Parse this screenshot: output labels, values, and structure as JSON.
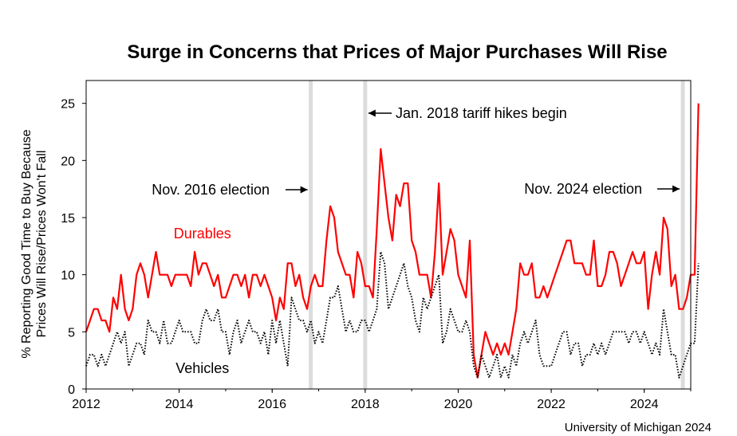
{
  "chart_data": {
    "type": "line",
    "title": "Surge in Concerns that Prices of Major Purchases Will Rise",
    "ylabel_line1": "% Reporting Good Time to Buy Because",
    "ylabel_line2": "Prices Will Rise/Prices Won't Fall",
    "xlabel": "",
    "source": "University of Michigan 2024",
    "xlim": [
      2012,
      2025.0
    ],
    "ylim": [
      0,
      27
    ],
    "xticks": [
      "2012",
      "2014",
      "2016",
      "2018",
      "2020",
      "2022",
      "2024"
    ],
    "yticks": [
      "0",
      "5",
      "10",
      "15",
      "20",
      "25"
    ],
    "events": [
      {
        "x": 2016.83,
        "label": "Nov. 2016 election"
      },
      {
        "x": 2018.0,
        "label": "Jan. 2018 tariff hikes begin"
      },
      {
        "x": 2024.83,
        "label": "Nov. 2024 election"
      }
    ],
    "series": [
      {
        "name": "Durables",
        "color": "#ff0000",
        "style": "solid",
        "start": 2012.0,
        "step_months": 1,
        "values": [
          5,
          6,
          7,
          7,
          6,
          6,
          5,
          8,
          7,
          10,
          7,
          6,
          7,
          10,
          11,
          10,
          8,
          10,
          12,
          10,
          10,
          10,
          9,
          10,
          10,
          10,
          10,
          9,
          12,
          10,
          11,
          11,
          10,
          9,
          10,
          8,
          8,
          9,
          10,
          10,
          9,
          10,
          8,
          10,
          10,
          9,
          10,
          9,
          8,
          6,
          8,
          7,
          11,
          11,
          9,
          10,
          8,
          7,
          9,
          10,
          9,
          9,
          13,
          16,
          15,
          12,
          11,
          10,
          10,
          8,
          12,
          11,
          9,
          9,
          8,
          14,
          21,
          18,
          15,
          13,
          17,
          16,
          18,
          18,
          13,
          12,
          10,
          10,
          10,
          8,
          12,
          18,
          10,
          12,
          14,
          13,
          10,
          9,
          8,
          13,
          3,
          1,
          3,
          5,
          4,
          3,
          4,
          3,
          4,
          3,
          5,
          7,
          11,
          10,
          10,
          11,
          8,
          8,
          9,
          8,
          9,
          10,
          11,
          12,
          13,
          13,
          11,
          11,
          11,
          10,
          10,
          13,
          9,
          9,
          10,
          12,
          12,
          11,
          9,
          10,
          11,
          12,
          11,
          11,
          12,
          7,
          10,
          12,
          10,
          15,
          14,
          9,
          10,
          7,
          7,
          8,
          10,
          10,
          25
        ],
        "label_x": 2014.5,
        "label_y": 13.2
      },
      {
        "name": "Vehicles",
        "color": "#000000",
        "style": "dotted",
        "start": 2012.0,
        "step_months": 1,
        "values": [
          2,
          3,
          3,
          2,
          3,
          2,
          3,
          4,
          5,
          4,
          5,
          2,
          3,
          4,
          4,
          3,
          6,
          5,
          5,
          4,
          6,
          4,
          4,
          5,
          6,
          5,
          5,
          5,
          4,
          4,
          6,
          7,
          6,
          6,
          7,
          5,
          5,
          3,
          5,
          6,
          4,
          5,
          6,
          5,
          5,
          4,
          5,
          3,
          6,
          4,
          6,
          4,
          2,
          8,
          7,
          6,
          6,
          5,
          6,
          4,
          5,
          4,
          6,
          8,
          8,
          9,
          7,
          5,
          6,
          5,
          5,
          6,
          6,
          5,
          6,
          7,
          12,
          11,
          7,
          8,
          9,
          10,
          11,
          9,
          8,
          6,
          5,
          8,
          7,
          8,
          9,
          10,
          4,
          5,
          7,
          6,
          5,
          5,
          6,
          5,
          2,
          1,
          3,
          2,
          1,
          2,
          3,
          1,
          2,
          1,
          3,
          2,
          4,
          5,
          4,
          5,
          6,
          3,
          2,
          2,
          2,
          3,
          4,
          5,
          5,
          3,
          4,
          4,
          2,
          3,
          3,
          4,
          3,
          4,
          3,
          4,
          5,
          5,
          5,
          5,
          4,
          5,
          5,
          4,
          5,
          4,
          3,
          4,
          3,
          7,
          5,
          3,
          3,
          1,
          2,
          3,
          4,
          4,
          11
        ],
        "label_x": 2014.5,
        "label_y": 1.4
      }
    ]
  }
}
